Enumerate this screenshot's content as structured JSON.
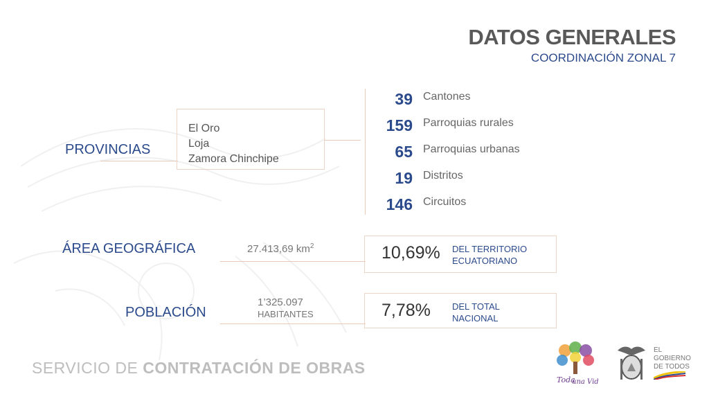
{
  "header": {
    "title": "DATOS GENERALES",
    "subtitle": "COORDINACIÓN ZONAL 7"
  },
  "provincias": {
    "label": "PROVINCIAS",
    "items": [
      "El Oro",
      "Loja",
      "Zamora Chinchipe"
    ]
  },
  "stats": [
    {
      "value": "39",
      "label": "Cantones"
    },
    {
      "value": "159",
      "label": "Parroquias rurales"
    },
    {
      "value": "65",
      "label": "Parroquias urbanas"
    },
    {
      "value": "19",
      "label": "Distritos"
    },
    {
      "value": "146",
      "label": "Circuitos"
    }
  ],
  "area": {
    "label": "ÁREA GEOGRÁFICA",
    "value": "27.413,69 km",
    "unit_sup": "2",
    "percent": "10,69%",
    "desc_line1": "DEL TERRITORIO",
    "desc_line2": "ECUATORIANO"
  },
  "poblacion": {
    "label": "POBLACIÓN",
    "value": "1’325.097",
    "unit": "HABITANTES",
    "percent": "7,78%",
    "desc_line1": "DEL TOTAL",
    "desc_line2": "NACIONAL"
  },
  "footer": {
    "text_light": "SERVICIO DE ",
    "text_bold": "CONTRATACIÓN DE OBRAS",
    "logo_vida_line1": "Toda",
    "logo_vida_line2": "una Vida",
    "gob_line1": "EL",
    "gob_line2": "GOBIERNO",
    "gob_line3": "DE TODOS"
  },
  "colors": {
    "accent_blue": "#2b4a8c",
    "line_peach": "#e7c9b8",
    "title_gray": "#595959"
  }
}
